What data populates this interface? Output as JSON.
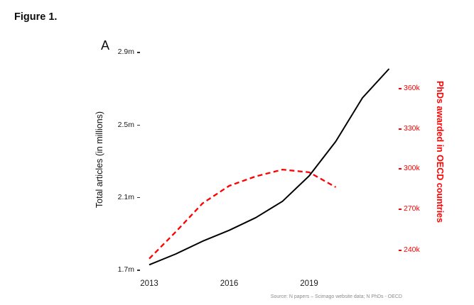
{
  "figure_label": "Figure 1.",
  "panel_label": "A",
  "source_note": "Source: N papers – Scimago website data; N PhDs - OECD",
  "colors": {
    "articles_line": "#000000",
    "phds_line": "#ff0000",
    "phds_axis_text": "#ff0000",
    "source_text": "#8c8c8c"
  },
  "axes": {
    "left": {
      "title": "Total articles (in millions)",
      "ticks": [
        "2.9m",
        "2.5m",
        "2.1m",
        "1.7m"
      ]
    },
    "right": {
      "title": "PhDs awarded in OECD countries",
      "ticks": [
        "360k",
        "330k",
        "300k",
        "270k",
        "240k"
      ]
    },
    "x": {
      "ticks": [
        "2013",
        "2016",
        "2019"
      ]
    }
  },
  "chart_data": {
    "type": "line",
    "title": "Figure 1. (panel A)",
    "xlabel": "",
    "x_tick_labels": [
      "2013",
      "2016",
      "2019"
    ],
    "x_range": [
      2013,
      2022
    ],
    "left_axis": {
      "label": "Total articles (in millions)",
      "tick_values": [
        1.7,
        2.1,
        2.5,
        2.9
      ],
      "ylim": [
        1.7,
        2.9
      ],
      "unit": "millions of articles"
    },
    "right_axis": {
      "label": "PhDs awarded in OECD countries",
      "tick_values": [
        240,
        270,
        300,
        330,
        360
      ],
      "ylim": [
        240,
        360
      ],
      "unit": "thousands of PhDs"
    },
    "grid": false,
    "legend": "none",
    "series": [
      {
        "name": "Total articles (in millions)",
        "axis": "left",
        "style": "solid",
        "color": "#000000",
        "x": [
          2013,
          2014,
          2015,
          2016,
          2017,
          2018,
          2019,
          2020,
          2021,
          2022
        ],
        "values": [
          1.73,
          1.79,
          1.86,
          1.92,
          1.99,
          2.08,
          2.22,
          2.41,
          2.65,
          2.81
        ]
      },
      {
        "name": "PhDs awarded in OECD countries (thousands)",
        "axis": "right",
        "style": "dashed",
        "color": "#ff0000",
        "x": [
          2013,
          2014,
          2015,
          2016,
          2017,
          2018,
          2019,
          2020
        ],
        "values": [
          234,
          254,
          275,
          288,
          295,
          300,
          298,
          287
        ]
      }
    ]
  }
}
